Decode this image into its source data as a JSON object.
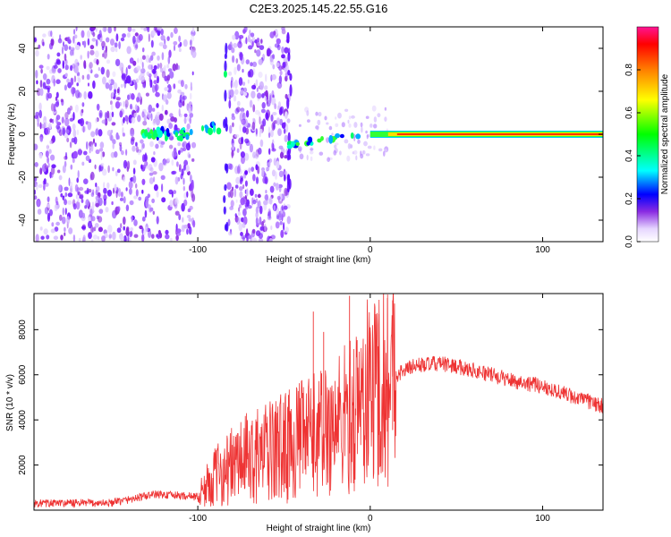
{
  "title": "C2E3.2025.145.22.55.G16",
  "chart_data": [
    {
      "type": "heatmap",
      "xlabel": "Height of straight line (km)",
      "ylabel": "Frequency (Hz)",
      "xlim": [
        -195,
        135
      ],
      "ylim": [
        -50,
        50
      ],
      "x_ticks": [
        -100,
        0,
        100
      ],
      "x_tick_labels": [
        "-100",
        "0",
        "100"
      ],
      "y_ticks": [
        -40,
        -20,
        0,
        20,
        40
      ],
      "y_tick_labels": [
        "-40",
        "-20",
        "0",
        "20",
        "40"
      ],
      "colorbar": {
        "label": "Normalized spectral amplitude",
        "range": [
          0,
          1
        ],
        "ticks": [
          0.0,
          0.2,
          0.4,
          0.6,
          0.8
        ],
        "tick_labels": [
          "0.0",
          "0.2",
          "0.4",
          "0.6",
          "0.8"
        ]
      },
      "noise_regions": [
        [
          -195,
          -102
        ],
        [
          -82,
          -47
        ]
      ],
      "ridge": [
        {
          "x": -130,
          "f": -2
        },
        {
          "x": -120,
          "f": 0
        },
        {
          "x": -100,
          "f": 3
        },
        {
          "x": -90,
          "f": 1
        },
        {
          "x": -84,
          "f": 28
        },
        {
          "x": -45,
          "f": -5
        },
        {
          "x": -30,
          "f": -3
        },
        {
          "x": -15,
          "f": 0
        },
        {
          "x": 0,
          "f": 0
        },
        {
          "x": 20,
          "f": 0
        },
        {
          "x": 135,
          "f": 0
        }
      ]
    },
    {
      "type": "line",
      "xlabel": "Height of straight line (km)",
      "ylabel": "SNR (10 * v/v)",
      "xlim": [
        -195,
        135
      ],
      "ylim": [
        0,
        9600
      ],
      "x_ticks": [
        -100,
        0,
        100
      ],
      "x_tick_labels": [
        "-100",
        "0",
        "100"
      ],
      "y_ticks": [
        2000,
        4000,
        6000,
        8000
      ],
      "y_tick_labels": [
        "2000",
        "4000",
        "6000",
        "8000"
      ],
      "color": "#ee3333",
      "envelope": [
        {
          "x": -195,
          "y": 300
        },
        {
          "x": -150,
          "y": 320
        },
        {
          "x": -125,
          "y": 700
        },
        {
          "x": -100,
          "y": 600
        },
        {
          "x": -90,
          "y": 1500
        },
        {
          "x": -75,
          "y": 2200
        },
        {
          "x": -60,
          "y": 2500
        },
        {
          "x": -45,
          "y": 3000
        },
        {
          "x": -30,
          "y": 3400
        },
        {
          "x": -20,
          "y": 3800
        },
        {
          "x": -10,
          "y": 4300
        },
        {
          "x": 0,
          "y": 5300
        },
        {
          "x": 10,
          "y": 5800
        },
        {
          "x": 25,
          "y": 6400
        },
        {
          "x": 40,
          "y": 6500
        },
        {
          "x": 55,
          "y": 6300
        },
        {
          "x": 70,
          "y": 6000
        },
        {
          "x": 85,
          "y": 5700
        },
        {
          "x": 100,
          "y": 5500
        },
        {
          "x": 115,
          "y": 5100
        },
        {
          "x": 135,
          "y": 4600
        }
      ],
      "spikes": [
        {
          "x": -33,
          "y": 8800
        },
        {
          "x": -27,
          "y": 7900
        },
        {
          "x": -12,
          "y": 9500
        },
        {
          "x": 5,
          "y": 8700
        },
        {
          "x": 10,
          "y": 9400
        },
        {
          "x": 13,
          "y": 9300
        }
      ]
    }
  ]
}
